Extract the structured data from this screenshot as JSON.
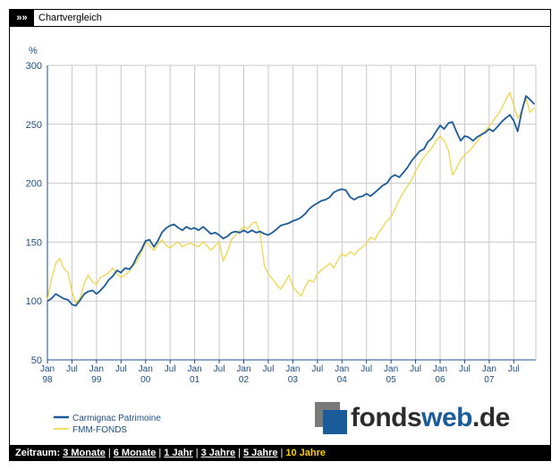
{
  "header": {
    "arrows": "»»",
    "title": "Chartvergleich"
  },
  "chart_data": {
    "type": "line",
    "ylabel": "%",
    "ylim": [
      50,
      300
    ],
    "yticks": [
      50,
      100,
      150,
      200,
      250,
      300
    ],
    "xlim": [
      1998.0,
      2007.95
    ],
    "xticks": [
      {
        "x": 1998.0,
        "label": "Jan",
        "year": "98"
      },
      {
        "x": 1998.5,
        "label": "Jul",
        "year": ""
      },
      {
        "x": 1999.0,
        "label": "Jan",
        "year": "99"
      },
      {
        "x": 1999.5,
        "label": "Jul",
        "year": ""
      },
      {
        "x": 2000.0,
        "label": "Jan",
        "year": "00"
      },
      {
        "x": 2000.5,
        "label": "Jul",
        "year": ""
      },
      {
        "x": 2001.0,
        "label": "Jan",
        "year": "01"
      },
      {
        "x": 2001.5,
        "label": "Jul",
        "year": ""
      },
      {
        "x": 2002.0,
        "label": "Jan",
        "year": "02"
      },
      {
        "x": 2002.5,
        "label": "Jul",
        "year": ""
      },
      {
        "x": 2003.0,
        "label": "Jan",
        "year": "03"
      },
      {
        "x": 2003.5,
        "label": "Jul",
        "year": ""
      },
      {
        "x": 2004.0,
        "label": "Jan",
        "year": "04"
      },
      {
        "x": 2004.5,
        "label": "Jul",
        "year": ""
      },
      {
        "x": 2005.0,
        "label": "Jan",
        "year": "05"
      },
      {
        "x": 2005.5,
        "label": "Jul",
        "year": ""
      },
      {
        "x": 2006.0,
        "label": "Jan",
        "year": "06"
      },
      {
        "x": 2006.5,
        "label": "Jul",
        "year": ""
      },
      {
        "x": 2007.0,
        "label": "Jan",
        "year": "07"
      },
      {
        "x": 2007.5,
        "label": "Jul",
        "year": ""
      }
    ],
    "grid": true,
    "series": [
      {
        "name": "Carmignac Patrimoine",
        "color": "#1a5b9a",
        "points": [
          [
            1998.0,
            100
          ],
          [
            1998.08,
            102
          ],
          [
            1998.17,
            106
          ],
          [
            1998.25,
            104
          ],
          [
            1998.33,
            102
          ],
          [
            1998.42,
            101
          ],
          [
            1998.5,
            97
          ],
          [
            1998.58,
            96
          ],
          [
            1998.67,
            101
          ],
          [
            1998.75,
            106
          ],
          [
            1998.83,
            108
          ],
          [
            1998.92,
            109
          ],
          [
            1999.0,
            106
          ],
          [
            1999.08,
            109
          ],
          [
            1999.17,
            113
          ],
          [
            1999.25,
            118
          ],
          [
            1999.33,
            121
          ],
          [
            1999.42,
            126
          ],
          [
            1999.5,
            124
          ],
          [
            1999.58,
            128
          ],
          [
            1999.67,
            127
          ],
          [
            1999.75,
            131
          ],
          [
            1999.83,
            138
          ],
          [
            1999.92,
            144
          ],
          [
            2000.0,
            151
          ],
          [
            2000.08,
            152
          ],
          [
            2000.17,
            146
          ],
          [
            2000.25,
            151
          ],
          [
            2000.33,
            158
          ],
          [
            2000.42,
            162
          ],
          [
            2000.5,
            164
          ],
          [
            2000.58,
            165
          ],
          [
            2000.67,
            162
          ],
          [
            2000.75,
            160
          ],
          [
            2000.83,
            163
          ],
          [
            2000.92,
            161
          ],
          [
            2001.0,
            162
          ],
          [
            2001.08,
            160
          ],
          [
            2001.17,
            163
          ],
          [
            2001.25,
            160
          ],
          [
            2001.33,
            157
          ],
          [
            2001.42,
            158
          ],
          [
            2001.5,
            156
          ],
          [
            2001.58,
            153
          ],
          [
            2001.67,
            155
          ],
          [
            2001.75,
            158
          ],
          [
            2001.83,
            159
          ],
          [
            2001.92,
            158
          ],
          [
            2002.0,
            160
          ],
          [
            2002.08,
            158
          ],
          [
            2002.17,
            160
          ],
          [
            2002.25,
            158
          ],
          [
            2002.33,
            159
          ],
          [
            2002.42,
            157
          ],
          [
            2002.5,
            156
          ],
          [
            2002.58,
            158
          ],
          [
            2002.67,
            161
          ],
          [
            2002.75,
            164
          ],
          [
            2002.83,
            165
          ],
          [
            2002.92,
            166
          ],
          [
            2003.0,
            168
          ],
          [
            2003.08,
            169
          ],
          [
            2003.17,
            171
          ],
          [
            2003.25,
            174
          ],
          [
            2003.33,
            178
          ],
          [
            2003.42,
            181
          ],
          [
            2003.5,
            183
          ],
          [
            2003.58,
            185
          ],
          [
            2003.67,
            186
          ],
          [
            2003.75,
            188
          ],
          [
            2003.83,
            192
          ],
          [
            2003.92,
            194
          ],
          [
            2004.0,
            195
          ],
          [
            2004.08,
            194
          ],
          [
            2004.17,
            188
          ],
          [
            2004.25,
            186
          ],
          [
            2004.33,
            188
          ],
          [
            2004.42,
            189
          ],
          [
            2004.5,
            191
          ],
          [
            2004.58,
            189
          ],
          [
            2004.67,
            192
          ],
          [
            2004.75,
            195
          ],
          [
            2004.83,
            198
          ],
          [
            2004.92,
            200
          ],
          [
            2005.0,
            205
          ],
          [
            2005.08,
            207
          ],
          [
            2005.17,
            205
          ],
          [
            2005.25,
            209
          ],
          [
            2005.33,
            213
          ],
          [
            2005.42,
            219
          ],
          [
            2005.5,
            223
          ],
          [
            2005.58,
            227
          ],
          [
            2005.67,
            229
          ],
          [
            2005.75,
            235
          ],
          [
            2005.83,
            238
          ],
          [
            2005.92,
            244
          ],
          [
            2006.0,
            249
          ],
          [
            2006.08,
            246
          ],
          [
            2006.17,
            251
          ],
          [
            2006.25,
            252
          ],
          [
            2006.33,
            244
          ],
          [
            2006.42,
            236
          ],
          [
            2006.5,
            240
          ],
          [
            2006.58,
            239
          ],
          [
            2006.67,
            236
          ],
          [
            2006.75,
            239
          ],
          [
            2006.83,
            241
          ],
          [
            2006.92,
            243
          ],
          [
            2007.0,
            246
          ],
          [
            2007.08,
            244
          ],
          [
            2007.17,
            248
          ],
          [
            2007.25,
            252
          ],
          [
            2007.33,
            255
          ],
          [
            2007.42,
            258
          ],
          [
            2007.5,
            253
          ],
          [
            2007.58,
            244
          ],
          [
            2007.67,
            262
          ],
          [
            2007.75,
            274
          ],
          [
            2007.83,
            271
          ],
          [
            2007.92,
            267
          ]
        ]
      },
      {
        "name": "FMM-FONDS",
        "color": "#f0d33a",
        "points": [
          [
            1998.0,
            101
          ],
          [
            1998.08,
            118
          ],
          [
            1998.17,
            132
          ],
          [
            1998.25,
            136
          ],
          [
            1998.33,
            128
          ],
          [
            1998.42,
            124
          ],
          [
            1998.5,
            108
          ],
          [
            1998.58,
            98
          ],
          [
            1998.67,
            103
          ],
          [
            1998.75,
            115
          ],
          [
            1998.83,
            122
          ],
          [
            1998.92,
            116
          ],
          [
            1999.0,
            114
          ],
          [
            1999.08,
            120
          ],
          [
            1999.17,
            122
          ],
          [
            1999.25,
            124
          ],
          [
            1999.33,
            128
          ],
          [
            1999.42,
            123
          ],
          [
            1999.5,
            120
          ],
          [
            1999.58,
            122
          ],
          [
            1999.67,
            125
          ],
          [
            1999.75,
            130
          ],
          [
            1999.83,
            134
          ],
          [
            1999.92,
            142
          ],
          [
            2000.0,
            150
          ],
          [
            2000.08,
            147
          ],
          [
            2000.17,
            143
          ],
          [
            2000.25,
            148
          ],
          [
            2000.33,
            152
          ],
          [
            2000.42,
            147
          ],
          [
            2000.5,
            145
          ],
          [
            2000.58,
            148
          ],
          [
            2000.67,
            150
          ],
          [
            2000.75,
            146
          ],
          [
            2000.83,
            148
          ],
          [
            2000.92,
            149
          ],
          [
            2001.0,
            147
          ],
          [
            2001.08,
            146
          ],
          [
            2001.17,
            150
          ],
          [
            2001.25,
            147
          ],
          [
            2001.33,
            143
          ],
          [
            2001.42,
            147
          ],
          [
            2001.5,
            150
          ],
          [
            2001.58,
            134
          ],
          [
            2001.67,
            142
          ],
          [
            2001.75,
            152
          ],
          [
            2001.83,
            156
          ],
          [
            2001.92,
            160
          ],
          [
            2002.0,
            163
          ],
          [
            2002.08,
            161
          ],
          [
            2002.17,
            166
          ],
          [
            2002.25,
            167
          ],
          [
            2002.33,
            158
          ],
          [
            2002.42,
            130
          ],
          [
            2002.5,
            123
          ],
          [
            2002.58,
            119
          ],
          [
            2002.67,
            114
          ],
          [
            2002.75,
            110
          ],
          [
            2002.83,
            115
          ],
          [
            2002.92,
            122
          ],
          [
            2003.0,
            112
          ],
          [
            2003.08,
            108
          ],
          [
            2003.17,
            104
          ],
          [
            2003.25,
            112
          ],
          [
            2003.33,
            118
          ],
          [
            2003.42,
            116
          ],
          [
            2003.5,
            123
          ],
          [
            2003.58,
            126
          ],
          [
            2003.67,
            129
          ],
          [
            2003.75,
            132
          ],
          [
            2003.83,
            128
          ],
          [
            2003.92,
            135
          ],
          [
            2004.0,
            140
          ],
          [
            2004.08,
            138
          ],
          [
            2004.17,
            142
          ],
          [
            2004.25,
            139
          ],
          [
            2004.33,
            143
          ],
          [
            2004.42,
            146
          ],
          [
            2004.5,
            149
          ],
          [
            2004.58,
            154
          ],
          [
            2004.67,
            152
          ],
          [
            2004.75,
            158
          ],
          [
            2004.83,
            163
          ],
          [
            2004.92,
            168
          ],
          [
            2005.0,
            171
          ],
          [
            2005.08,
            178
          ],
          [
            2005.17,
            186
          ],
          [
            2005.25,
            192
          ],
          [
            2005.33,
            197
          ],
          [
            2005.42,
            203
          ],
          [
            2005.5,
            210
          ],
          [
            2005.58,
            216
          ],
          [
            2005.67,
            222
          ],
          [
            2005.75,
            226
          ],
          [
            2005.83,
            230
          ],
          [
            2005.92,
            236
          ],
          [
            2006.0,
            240
          ],
          [
            2006.08,
            236
          ],
          [
            2006.17,
            228
          ],
          [
            2006.25,
            207
          ],
          [
            2006.33,
            212
          ],
          [
            2006.42,
            220
          ],
          [
            2006.5,
            224
          ],
          [
            2006.58,
            227
          ],
          [
            2006.67,
            231
          ],
          [
            2006.75,
            235
          ],
          [
            2006.83,
            240
          ],
          [
            2006.92,
            245
          ],
          [
            2007.0,
            248
          ],
          [
            2007.08,
            253
          ],
          [
            2007.17,
            258
          ],
          [
            2007.25,
            263
          ],
          [
            2007.33,
            270
          ],
          [
            2007.42,
            277
          ],
          [
            2007.5,
            266
          ],
          [
            2007.58,
            255
          ],
          [
            2007.67,
            262
          ],
          [
            2007.75,
            272
          ],
          [
            2007.83,
            260
          ],
          [
            2007.92,
            264
          ]
        ]
      }
    ]
  },
  "footer": {
    "label": "Zeitraum:",
    "options": [
      "3 Monate",
      "6 Monate",
      "1 Jahr",
      "3 Jahre",
      "5 Jahre",
      "10 Jahre"
    ],
    "active": "10 Jahre"
  },
  "logo": {
    "part1": "fonds",
    "part2": "web",
    "part3": ".de"
  }
}
